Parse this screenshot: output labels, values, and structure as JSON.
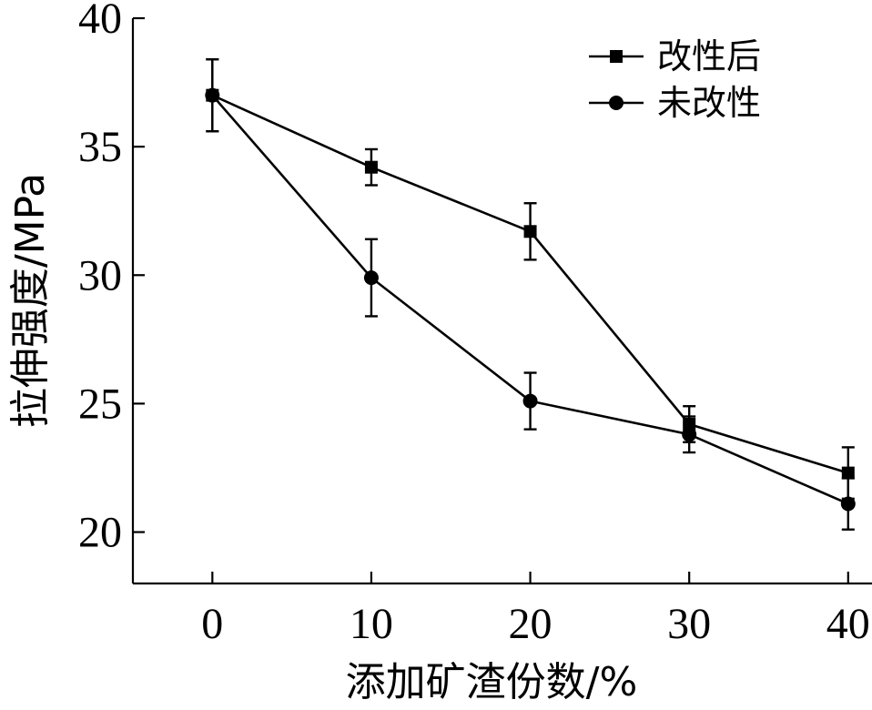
{
  "chart_data": {
    "type": "line",
    "x": [
      0,
      10,
      20,
      30,
      40
    ],
    "xticks": [
      "0",
      "10",
      "20",
      "30",
      "40"
    ],
    "yticks": [
      "20",
      "25",
      "30",
      "35",
      "40"
    ],
    "xlabel": "添加矿渣份数/%",
    "ylabel": "拉伸强度/MPa",
    "xlim": [
      -5,
      41.5
    ],
    "ylim": [
      18,
      40
    ],
    "grid": false,
    "legend_position": "top-right",
    "series": [
      {
        "name": "改性后",
        "marker": "square",
        "values": [
          37.0,
          34.2,
          31.7,
          24.2,
          22.3
        ],
        "error": [
          1.4,
          0.7,
          1.1,
          0.7,
          1.0
        ]
      },
      {
        "name": "未改性",
        "marker": "circle",
        "values": [
          37.0,
          29.9,
          25.1,
          23.8,
          21.1
        ],
        "error": [
          1.4,
          1.5,
          1.1,
          0.7,
          1.0
        ]
      }
    ]
  }
}
